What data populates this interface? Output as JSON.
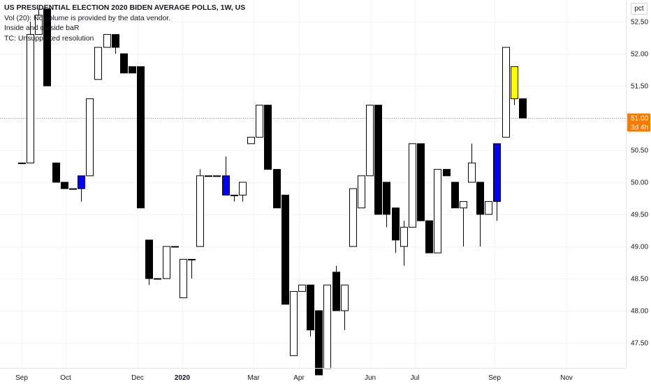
{
  "header": {
    "title": "US PRESIDENTIAL ELECTION 2020 BIDEN AVERAGE POLLS, 1W, US",
    "volume_note": "Vol (20): No volume is provided by the data vendor.",
    "indicator_1": "Inside and outside baR",
    "indicator_2": "TC: Unsupported resolution"
  },
  "scale_button": "pct",
  "colors": {
    "up_fill": "#ffffff",
    "down_fill": "#000000",
    "inside_bar": "#0000ff",
    "outside_highlight": "#ffff00",
    "last_price": "#f57c00"
  },
  "chart_data": {
    "type": "candlestick",
    "title": "US PRESIDENTIAL ELECTION 2020 BIDEN AVERAGE POLLS, 1W, US",
    "interval": "1W",
    "ylim": [
      47.1,
      52.7
    ],
    "y_ticks": [
      "52.50",
      "52.00",
      "51.50",
      "50.50",
      "50.00",
      "49.50",
      "49.00",
      "48.50",
      "48.00",
      "47.50"
    ],
    "x_ticks": [
      "Sep",
      "Oct",
      "Dec",
      "2020",
      "Mar",
      "Apr",
      "Jun",
      "Jul",
      "Sep",
      "Nov"
    ],
    "last_price": {
      "value": "51.00",
      "countdown": "3d 4h"
    },
    "grid": true,
    "candles": [
      {
        "o": 50.3,
        "h": 50.3,
        "l": 50.3,
        "c": 50.3,
        "color": "up"
      },
      {
        "o": 50.3,
        "h": 52.5,
        "l": 50.3,
        "c": 52.3,
        "color": "up"
      },
      {
        "o": 52.3,
        "h": 52.7,
        "l": 52.3,
        "c": 52.6,
        "color": "up"
      },
      {
        "o": 52.7,
        "h": 52.7,
        "l": 51.5,
        "c": 51.5,
        "color": "down"
      },
      {
        "o": 50.3,
        "h": 50.3,
        "l": 50.0,
        "c": 50.0,
        "color": "down"
      },
      {
        "o": 50.0,
        "h": 50.0,
        "l": 49.9,
        "c": 49.9,
        "color": "down"
      },
      {
        "o": 49.9,
        "h": 49.9,
        "l": 49.9,
        "c": 49.9,
        "color": "down"
      },
      {
        "o": 49.9,
        "h": 50.1,
        "l": 49.7,
        "c": 50.1,
        "color": "inside"
      },
      {
        "o": 50.1,
        "h": 51.3,
        "l": 50.1,
        "c": 51.3,
        "color": "up"
      },
      {
        "o": 51.6,
        "h": 52.1,
        "l": 51.6,
        "c": 52.1,
        "color": "up"
      },
      {
        "o": 52.1,
        "h": 52.3,
        "l": 52.1,
        "c": 52.3,
        "color": "up"
      },
      {
        "o": 52.3,
        "h": 52.3,
        "l": 52.0,
        "c": 52.1,
        "color": "down"
      },
      {
        "o": 52.0,
        "h": 52.0,
        "l": 51.7,
        "c": 51.7,
        "color": "down"
      },
      {
        "o": 51.8,
        "h": 51.8,
        "l": 51.7,
        "c": 51.7,
        "color": "down"
      },
      {
        "o": 51.8,
        "h": 51.8,
        "l": 49.6,
        "c": 49.6,
        "color": "down"
      },
      {
        "o": 49.1,
        "h": 49.1,
        "l": 48.4,
        "c": 48.5,
        "color": "down"
      },
      {
        "o": 48.5,
        "h": 48.5,
        "l": 48.5,
        "c": 48.5,
        "color": "down"
      },
      {
        "o": 48.5,
        "h": 49.0,
        "l": 48.5,
        "c": 49.0,
        "color": "up"
      },
      {
        "o": 49.0,
        "h": 49.0,
        "l": 49.0,
        "c": 49.0,
        "color": "up"
      },
      {
        "o": 48.2,
        "h": 48.8,
        "l": 48.2,
        "c": 48.8,
        "color": "up"
      },
      {
        "o": 48.8,
        "h": 48.8,
        "l": 48.5,
        "c": 48.8,
        "color": "up"
      },
      {
        "o": 49.0,
        "h": 50.2,
        "l": 49.0,
        "c": 50.1,
        "color": "up"
      },
      {
        "o": 50.1,
        "h": 50.1,
        "l": 50.1,
        "c": 50.1,
        "color": "up"
      },
      {
        "o": 50.1,
        "h": 50.1,
        "l": 50.1,
        "c": 50.1,
        "color": "up"
      },
      {
        "o": 50.1,
        "h": 50.4,
        "l": 49.8,
        "c": 49.8,
        "color": "inside"
      },
      {
        "o": 49.8,
        "h": 49.8,
        "l": 49.7,
        "c": 49.8,
        "color": "up"
      },
      {
        "o": 49.8,
        "h": 50.0,
        "l": 49.7,
        "c": 50.0,
        "color": "up"
      },
      {
        "o": 50.6,
        "h": 50.7,
        "l": 50.6,
        "c": 50.7,
        "color": "up"
      },
      {
        "o": 50.7,
        "h": 51.2,
        "l": 50.7,
        "c": 51.2,
        "color": "up"
      },
      {
        "o": 51.2,
        "h": 51.2,
        "l": 50.2,
        "c": 50.2,
        "color": "down"
      },
      {
        "o": 50.2,
        "h": 50.2,
        "l": 49.6,
        "c": 49.6,
        "color": "down"
      },
      {
        "o": 49.8,
        "h": 49.8,
        "l": 48.1,
        "c": 48.1,
        "color": "down"
      },
      {
        "o": 47.3,
        "h": 48.3,
        "l": 47.3,
        "c": 48.3,
        "color": "up"
      },
      {
        "o": 48.3,
        "h": 48.4,
        "l": 48.3,
        "c": 48.4,
        "color": "up"
      },
      {
        "o": 48.4,
        "h": 48.4,
        "l": 47.6,
        "c": 47.7,
        "color": "down"
      },
      {
        "o": 48.0,
        "h": 48.0,
        "l": 47.0,
        "c": 47.0,
        "color": "down"
      },
      {
        "o": 47.1,
        "h": 48.4,
        "l": 47.1,
        "c": 48.4,
        "color": "up"
      },
      {
        "o": 48.6,
        "h": 48.7,
        "l": 48.0,
        "c": 48.0,
        "color": "down"
      },
      {
        "o": 48.0,
        "h": 48.4,
        "l": 47.7,
        "c": 48.4,
        "color": "up"
      },
      {
        "o": 49.0,
        "h": 49.9,
        "l": 49.0,
        "c": 49.9,
        "color": "up"
      },
      {
        "o": 49.6,
        "h": 50.1,
        "l": 49.6,
        "c": 50.1,
        "color": "up"
      },
      {
        "o": 50.1,
        "h": 51.2,
        "l": 50.1,
        "c": 51.2,
        "color": "up"
      },
      {
        "o": 51.2,
        "h": 51.2,
        "l": 49.5,
        "c": 49.5,
        "color": "down"
      },
      {
        "o": 50.0,
        "h": 50.0,
        "l": 49.3,
        "c": 49.5,
        "color": "down"
      },
      {
        "o": 49.6,
        "h": 49.6,
        "l": 48.9,
        "c": 49.1,
        "color": "down"
      },
      {
        "o": 49.0,
        "h": 49.4,
        "l": 48.7,
        "c": 49.3,
        "color": "up"
      },
      {
        "o": 49.3,
        "h": 50.6,
        "l": 49.3,
        "c": 50.6,
        "color": "up"
      },
      {
        "o": 50.6,
        "h": 50.6,
        "l": 49.4,
        "c": 49.4,
        "color": "down"
      },
      {
        "o": 49.4,
        "h": 49.4,
        "l": 48.9,
        "c": 48.9,
        "color": "down"
      },
      {
        "o": 48.9,
        "h": 50.2,
        "l": 48.9,
        "c": 50.2,
        "color": "up"
      },
      {
        "o": 50.2,
        "h": 50.2,
        "l": 50.1,
        "c": 50.1,
        "color": "down"
      },
      {
        "o": 50.0,
        "h": 50.0,
        "l": 49.6,
        "c": 49.6,
        "color": "down"
      },
      {
        "o": 49.6,
        "h": 49.7,
        "l": 49.0,
        "c": 49.7,
        "color": "up"
      },
      {
        "o": 50.0,
        "h": 50.6,
        "l": 50.0,
        "c": 50.3,
        "color": "up"
      },
      {
        "o": 50.0,
        "h": 50.0,
        "l": 49.0,
        "c": 49.5,
        "color": "down"
      },
      {
        "o": 49.5,
        "h": 49.7,
        "l": 49.5,
        "c": 49.7,
        "color": "up"
      },
      {
        "o": 49.7,
        "h": 50.6,
        "l": 49.4,
        "c": 50.6,
        "color": "inside"
      },
      {
        "o": 50.7,
        "h": 52.1,
        "l": 50.7,
        "c": 52.1,
        "color": "up"
      },
      {
        "o": 51.8,
        "h": 51.8,
        "l": 51.2,
        "c": 51.3,
        "color": "highlight"
      },
      {
        "o": 51.3,
        "h": 51.3,
        "l": 51.0,
        "c": 51.0,
        "color": "down"
      }
    ]
  }
}
